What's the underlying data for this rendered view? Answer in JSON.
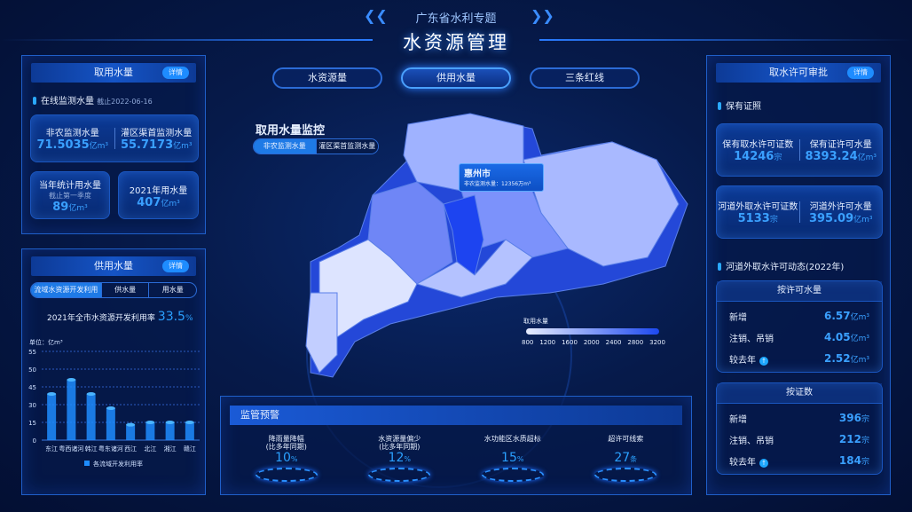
{
  "header": {
    "subtitle": "广东省水利专题",
    "title": "水资源管理"
  },
  "nav": {
    "tabs": [
      {
        "label": "水资源量",
        "active": false
      },
      {
        "label": "供用水量",
        "active": true
      },
      {
        "label": "三条红线",
        "active": false
      }
    ]
  },
  "left_top": {
    "title": "取用水量",
    "detail": "详情",
    "section": "在线监测水量",
    "date": "截止2022-06-16",
    "stats": [
      {
        "label": "非农监测水量",
        "value": "71.5035",
        "unit": "亿m³"
      },
      {
        "label": "灌区渠首监测水量",
        "value": "55.7173",
        "unit": "亿m³"
      }
    ],
    "year_stat": {
      "label": "当年统计用水量",
      "note": "截止第一季度",
      "value": "89",
      "unit": "亿m³"
    },
    "y2021": {
      "label": "2021年用水量",
      "value": "407",
      "unit": "亿m³"
    }
  },
  "left_bottom": {
    "title": "供用水量",
    "detail": "详情",
    "tabs": [
      "流域水资源开发利用",
      "供水量",
      "用水量"
    ],
    "rate_label": "2021年全市水资源开发利用率",
    "rate_value": "33.5",
    "rate_unit": "%"
  },
  "chart_data": {
    "type": "bar",
    "ylabel": "单位：亿m³",
    "yticks": [
      0,
      15,
      30,
      45,
      50,
      55
    ],
    "categories": [
      "东江",
      "粤西诸河",
      "韩江",
      "粤东诸河",
      "西江",
      "北江",
      "湘江",
      "赣江"
    ],
    "values": [
      39,
      47,
      39,
      27,
      13,
      15,
      15,
      15
    ],
    "legend": "各流域开发利用率",
    "grid": true,
    "color": "#1e8cff"
  },
  "map": {
    "title": "取用水量监控",
    "toggle": [
      "非农监测水量",
      "灌区渠首监测水量"
    ],
    "tooltip": {
      "city": "惠州市",
      "label": "非农监测水量：",
      "value": "12356",
      "unit": "万m³"
    },
    "legend": {
      "title": "取用水量",
      "ticks": [
        "800",
        "1200",
        "1600",
        "2000",
        "2400",
        "2800",
        "3200"
      ]
    }
  },
  "warning": {
    "title": "监管预警",
    "items": [
      {
        "label": "降雨量降幅",
        "sub": "(比多年同期)",
        "value": "10",
        "unit": "%"
      },
      {
        "label": "水资源量偏少",
        "sub": "(比多年同期)",
        "value": "12",
        "unit": "%"
      },
      {
        "label": "水功能区水质超标",
        "sub": "",
        "value": "15",
        "unit": "%"
      },
      {
        "label": "超许可线索",
        "sub": "",
        "value": "27",
        "unit": "条"
      }
    ]
  },
  "right": {
    "title": "取水许可审批",
    "detail": "详情",
    "section1": "保有证照",
    "card1": [
      {
        "label": "保有取水许可证数",
        "value": "14246",
        "unit": "宗"
      },
      {
        "label": "保有证许可水量",
        "value": "8393.24",
        "unit": "亿m³"
      }
    ],
    "card2": [
      {
        "label": "河道外取水许可证数",
        "value": "5133",
        "unit": "宗"
      },
      {
        "label": "河道外许可水量",
        "value": "395.09",
        "unit": "亿m³"
      }
    ],
    "section2": "河道外取水许可动态(2022年)",
    "box1": {
      "title": "按许可水量",
      "rows": [
        {
          "label": "新增",
          "value": "6.57",
          "unit": "亿m³"
        },
        {
          "label": "注销、吊销",
          "value": "4.05",
          "unit": "亿m³"
        },
        {
          "label": "较去年",
          "value": "2.52",
          "unit": "亿m³"
        }
      ]
    },
    "box2": {
      "title": "按证数",
      "rows": [
        {
          "label": "新增",
          "value": "396",
          "unit": "宗"
        },
        {
          "label": "注销、吊销",
          "value": "212",
          "unit": "宗"
        },
        {
          "label": "较去年",
          "value": "184",
          "unit": "宗"
        }
      ]
    }
  }
}
